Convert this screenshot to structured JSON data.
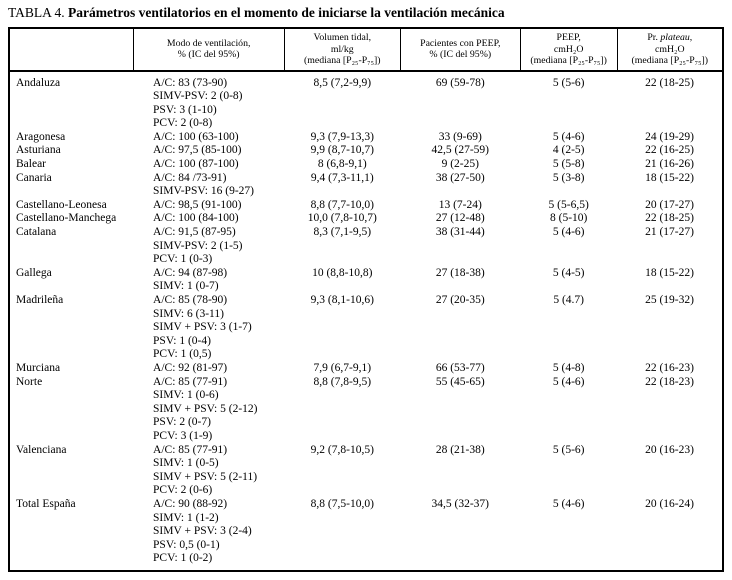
{
  "title": {
    "label": "TABLA 4.",
    "caption": "Parámetros ventilatorios en el momento de iniciarse la ventilación mecánica"
  },
  "table": {
    "columns": [
      {
        "id": "region",
        "header_lines": []
      },
      {
        "id": "modo",
        "header_lines": [
          "Modo de ventilación,",
          "% (IC del 95%)"
        ]
      },
      {
        "id": "volumen",
        "header_lines": [
          "Volumen tidal,",
          "ml/kg",
          "(mediana [P₂₅-P₇₅])"
        ]
      },
      {
        "id": "pacientes",
        "header_lines": [
          "Pacientes con PEEP,",
          "% (IC del 95%)"
        ]
      },
      {
        "id": "peep",
        "header_lines": [
          "PEEP,",
          "cmH₂O",
          "(mediana [P₂₅-P₇₅])"
        ]
      },
      {
        "id": "plateau",
        "header_lines": [
          {
            "pre": "Pr. ",
            "italic": "plateau",
            "post": ","
          },
          "cmH₂O",
          "(mediana [P₂₅-P₇₅])"
        ]
      }
    ],
    "rows": [
      {
        "region": "Andaluza",
        "modo": [
          "A/C: 83 (73-90)",
          "SIMV-PSV: 2 (0-8)",
          "PSV: 3 (1-10)",
          "PCV: 2 (0-8)"
        ],
        "volumen": "8,5 (7,2-9,9)",
        "pacientes": "69 (59-78)",
        "peep": "5 (5-6)",
        "plateau": "22 (18-25)"
      },
      {
        "region": "Aragonesa",
        "modo": [
          "A/C: 100 (63-100)"
        ],
        "volumen": "9,3 (7,9-13,3)",
        "pacientes": "33 (9-69)",
        "peep": "5 (4-6)",
        "plateau": "24 (19-29)"
      },
      {
        "region": "Asturiana",
        "modo": [
          "A/C: 97,5 (85-100)"
        ],
        "volumen": "9,9 (8,7-10,7)",
        "pacientes": "42,5 (27-59)",
        "peep": "4 (2-5)",
        "plateau": "22 (16-25)"
      },
      {
        "region": "Balear",
        "modo": [
          "A/C: 100 (87-100)"
        ],
        "volumen": "8 (6,8-9,1)",
        "pacientes": "9 (2-25)",
        "peep": "5 (5-8)",
        "plateau": "21 (16-26)"
      },
      {
        "region": "Canaria",
        "modo": [
          "A/C: 84 /73-91)",
          "SIMV-PSV: 16 (9-27)"
        ],
        "volumen": "9,4 (7,3-11,1)",
        "pacientes": "38 (27-50)",
        "peep": "5 (3-8)",
        "plateau": "18 (15-22)"
      },
      {
        "region": "Castellano-Leonesa",
        "modo": [
          "A/C: 98,5 (91-100)"
        ],
        "volumen": "8,8 (7,7-10,0)",
        "pacientes": "13 (7-24)",
        "peep": "5 (5-6,5)",
        "plateau": "20 (17-27)"
      },
      {
        "region": "Castellano-Manchega",
        "modo": [
          "A/C: 100 (84-100)"
        ],
        "volumen": "10,0 (7,8-10,7)",
        "pacientes": "27 (12-48)",
        "peep": "8 (5-10)",
        "plateau": "22 (18-25)"
      },
      {
        "region": "Catalana",
        "modo": [
          "A/C: 91,5 (87-95)",
          "SIMV-PSV: 2 (1-5)",
          "PCV: 1 (0-3)"
        ],
        "volumen": "8,3 (7,1-9,5)",
        "pacientes": "38 (31-44)",
        "peep": "5 (4-6)",
        "plateau": "21 (17-27)"
      },
      {
        "region": "Gallega",
        "modo": [
          "A/C: 94 (87-98)",
          "SIMV: 1 (0-7)"
        ],
        "volumen": "10 (8,8-10,8)",
        "pacientes": "27 (18-38)",
        "peep": "5 (4-5)",
        "plateau": "18 (15-22)"
      },
      {
        "region": "Madrileña",
        "modo": [
          "A/C: 85 (78-90)",
          "SIMV: 6 (3-11)",
          "SIMV + PSV: 3 (1-7)",
          "PSV: 1 (0-4)",
          "PCV: 1 (0,5)"
        ],
        "volumen": "9,3 (8,1-10,6)",
        "pacientes": "27 (20-35)",
        "peep": "5 (4.7)",
        "plateau": "25 (19-32)"
      },
      {
        "region": "Murciana",
        "modo": [
          "A/C: 92 (81-97)"
        ],
        "volumen": "7,9 (6,7-9,1)",
        "pacientes": "66 (53-77)",
        "peep": "5 (4-8)",
        "plateau": "22 (16-23)"
      },
      {
        "region": "Norte",
        "modo": [
          "A/C: 85 (77-91)",
          "SIMV: 1 (0-6)",
          "SIMV + PSV: 5 (2-12)",
          "PSV: 2 (0-7)",
          "PCV: 3 (1-9)"
        ],
        "volumen": "8,8 (7,8-9,5)",
        "pacientes": "55 (45-65)",
        "peep": "5 (4-6)",
        "plateau": "22 (18-23)"
      },
      {
        "region": "Valenciana",
        "modo": [
          "A/C: 85 (77-91)",
          "SIMV: 1 (0-5)",
          "SIMV + PSV: 5 (2-11)",
          "PCV: 2 (0-6)"
        ],
        "volumen": "9,2 (7,8-10,5)",
        "pacientes": "28 (21-38)",
        "peep": "5 (5-6)",
        "plateau": "20 (16-23)"
      },
      {
        "region": "Total España",
        "modo": [
          "A/C: 90 (88-92)",
          "SIMV: 1 (1-2)",
          "SIMV + PSV: 3 (2-4)",
          "PSV: 0,5 (0-1)",
          "PCV: 1 (0-2)"
        ],
        "volumen": "8,8 (7,5-10,0)",
        "pacientes": "34,5 (32-37)",
        "peep": "5 (4-6)",
        "plateau": "20 (16-24)"
      }
    ]
  }
}
